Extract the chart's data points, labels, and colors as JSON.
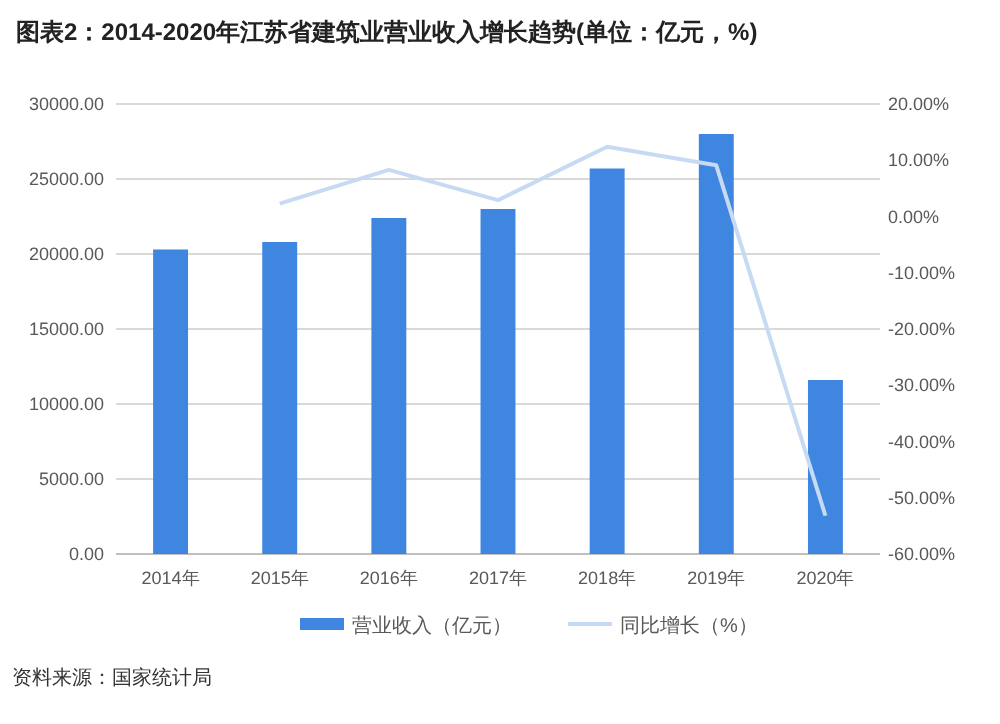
{
  "chart_data": {
    "type": "bar",
    "title": "图表2：2014-2020年江苏省建筑业营业收入增长趋势(单位：亿元，%)",
    "categories": [
      "2014年",
      "2015年",
      "2016年",
      "2017年",
      "2018年",
      "2019年",
      "2020年"
    ],
    "series": [
      {
        "name": "营业收入（亿元）",
        "color": "#3f86e0",
        "values": [
          20300,
          20800,
          22400,
          23000,
          25700,
          28000,
          11600
        ]
      },
      {
        "name": "同比增长（%）",
        "type": "line",
        "axis": "y2",
        "color": "#c6dbf3",
        "values": [
          null,
          2.3,
          8.3,
          2.9,
          12.4,
          9.1,
          -53.2
        ]
      }
    ],
    "ylim": [
      0,
      30000
    ],
    "yticks": [
      {
        "value": 0,
        "label": "0.00"
      },
      {
        "value": 5000,
        "label": "5000.00"
      },
      {
        "value": 10000,
        "label": "10000.00"
      },
      {
        "value": 15000,
        "label": "15000.00"
      },
      {
        "value": 20000,
        "label": "20000.00"
      },
      {
        "value": 25000,
        "label": "25000.00"
      },
      {
        "value": 30000,
        "label": "30000.00"
      }
    ],
    "y2lim": [
      -60,
      20
    ],
    "y2ticks": [
      {
        "value": -60,
        "label": "-60.00%"
      },
      {
        "value": -50,
        "label": "-50.00%"
      },
      {
        "value": -40,
        "label": "-40.00%"
      },
      {
        "value": -30,
        "label": "-30.00%"
      },
      {
        "value": -20,
        "label": "-20.00%"
      },
      {
        "value": -10,
        "label": "-10.00%"
      },
      {
        "value": 0,
        "label": "0.00%"
      },
      {
        "value": 10,
        "label": "10.00%"
      },
      {
        "value": 20,
        "label": "20.00%"
      }
    ],
    "grid": "y",
    "legend": "bottom",
    "marker": "none",
    "line_style": "solid",
    "annotations": [
      "资料来源：国家统计局"
    ]
  }
}
